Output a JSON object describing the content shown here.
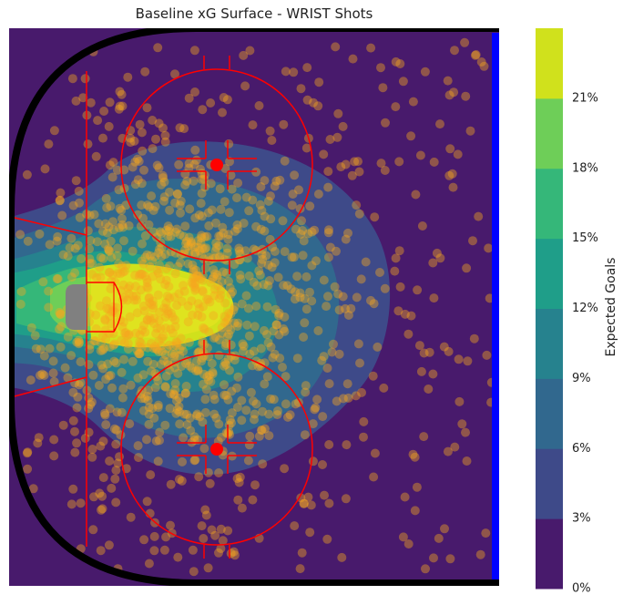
{
  "chart_data": {
    "type": "heatmap",
    "title": "Baseline xG Surface - WRIST Shots",
    "colorbar": {
      "label": "Expected Goals",
      "ticks": [
        "0%",
        "3%",
        "6%",
        "9%",
        "12%",
        "15%",
        "18%",
        "21%"
      ],
      "levels": [
        0,
        3,
        6,
        9,
        12,
        15,
        18,
        21
      ],
      "colors": [
        "#481a6c",
        "#3e4a89",
        "#31688e",
        "#26828e",
        "#1f9e89",
        "#35b779",
        "#6ece58",
        "#d0e11c"
      ]
    },
    "shot_marker_color": "#f5a81f",
    "rink_colors": {
      "boards": "#000000",
      "red_lines": "#ff0000",
      "blue_line": "#0000ff",
      "net": "#808080"
    }
  }
}
